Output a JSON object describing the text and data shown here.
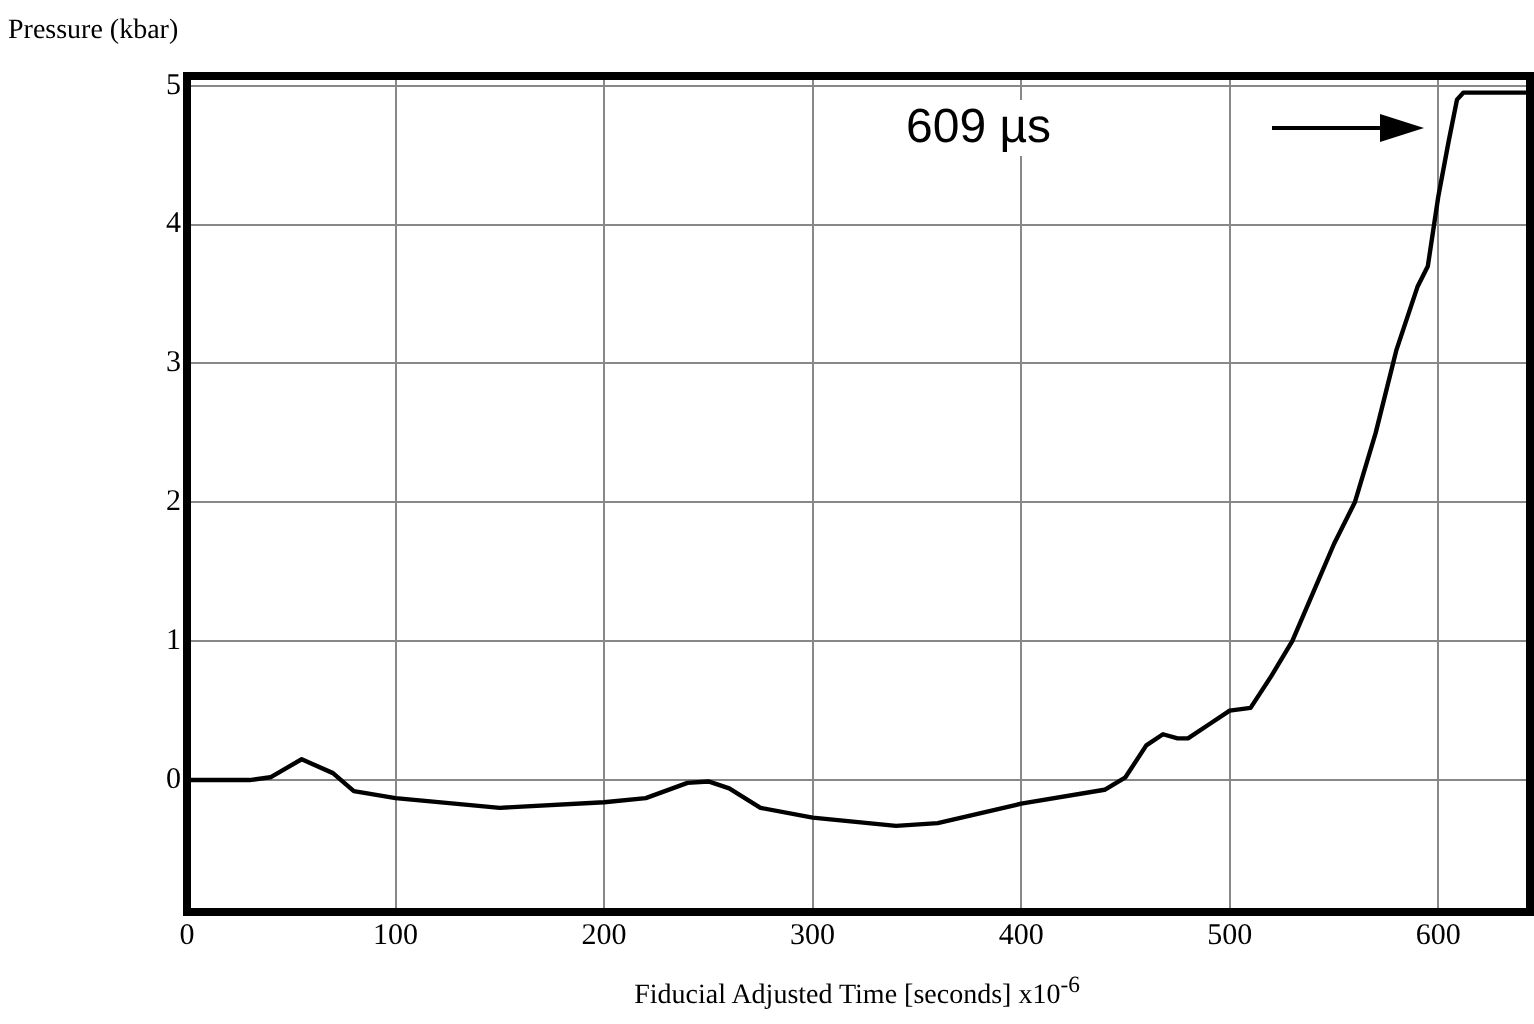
{
  "chart_data": {
    "type": "line",
    "xlabel": "Fiducial Adjusted Time [seconds] x10$^{-6}$",
    "ylabel": "Pressure (kbar)",
    "xlim": [
      0,
      644
    ],
    "ylim": [
      -0.95,
      5.07
    ],
    "xticks": [
      0,
      100,
      200,
      300,
      400,
      500,
      600
    ],
    "yticks": [
      0,
      1,
      2,
      3,
      4,
      5
    ],
    "grid": true,
    "legend": false,
    "marker": "none",
    "line_style": "solid",
    "annotations": [
      "609 µs"
    ],
    "series": [
      {
        "color": "#000000",
        "x": [
          0,
          30,
          40,
          55,
          70,
          80,
          100,
          150,
          200,
          220,
          240,
          250,
          260,
          275,
          300,
          340,
          360,
          400,
          440,
          450,
          460,
          468,
          475,
          480,
          490,
          500,
          510,
          520,
          530,
          540,
          550,
          560,
          570,
          580,
          590,
          595,
          600,
          605,
          609,
          612,
          644
        ],
        "values": [
          0,
          0,
          0.02,
          0.15,
          0.05,
          -0.08,
          -0.13,
          -0.2,
          -0.16,
          -0.13,
          -0.02,
          -0.01,
          -0.06,
          -0.2,
          -0.27,
          -0.33,
          -0.31,
          -0.17,
          -0.07,
          0.02,
          0.25,
          0.33,
          0.3,
          0.3,
          0.4,
          0.5,
          0.52,
          0.75,
          1.0,
          1.35,
          1.7,
          2.0,
          2.5,
          3.1,
          3.55,
          3.7,
          4.2,
          4.6,
          4.9,
          4.95,
          4.95
        ]
      }
    ]
  }
}
